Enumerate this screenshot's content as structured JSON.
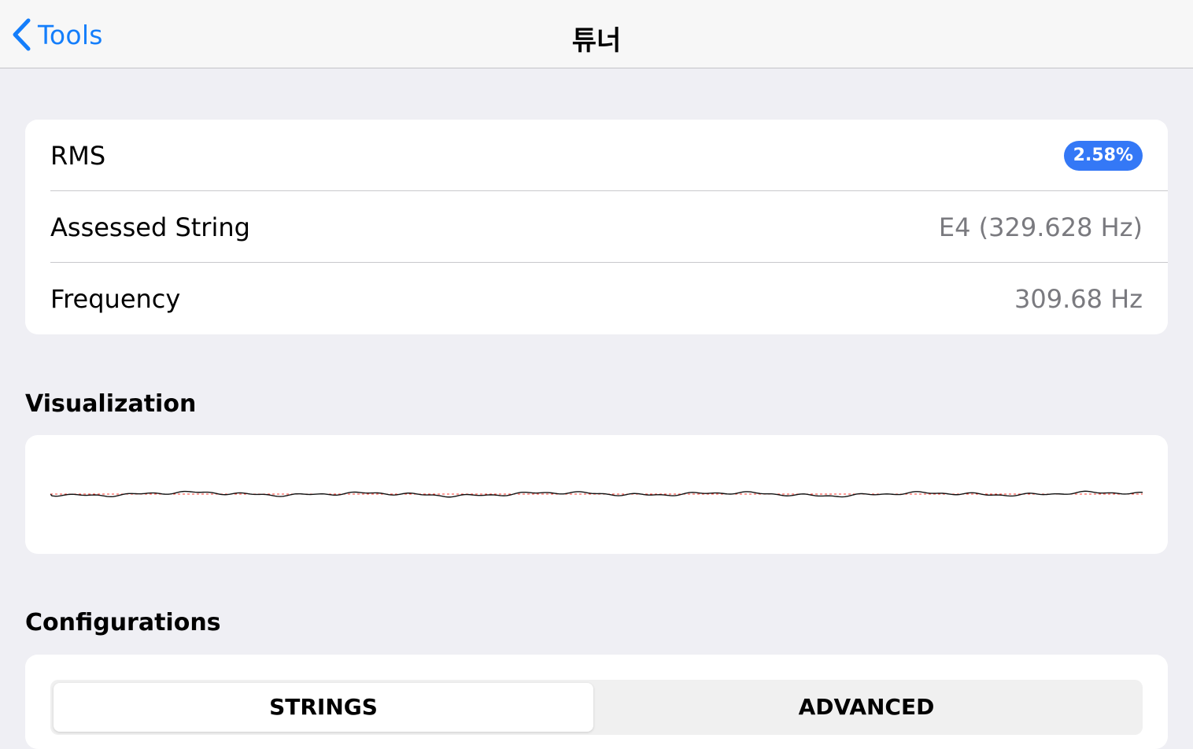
{
  "navbar": {
    "back_label": "Tools",
    "back_icon": "chevron-left-icon",
    "title": "튜너"
  },
  "info": {
    "rows": [
      {
        "label": "RMS",
        "value": "2.58%"
      },
      {
        "label": "Assessed String",
        "value": "E4 (329.628 Hz)"
      },
      {
        "label": "Frequency",
        "value": "309.68 Hz"
      }
    ]
  },
  "visualization": {
    "title": "Visualization"
  },
  "configurations": {
    "title": "Configurations",
    "tabs": [
      "STRINGS",
      "ADVANCED"
    ],
    "selected_tab": "STRINGS"
  },
  "colors": {
    "accent": "#147efb",
    "badge": "#3478f6",
    "waveform": "#111111",
    "baseline": "#ff3b30",
    "background": "#efeff4"
  }
}
